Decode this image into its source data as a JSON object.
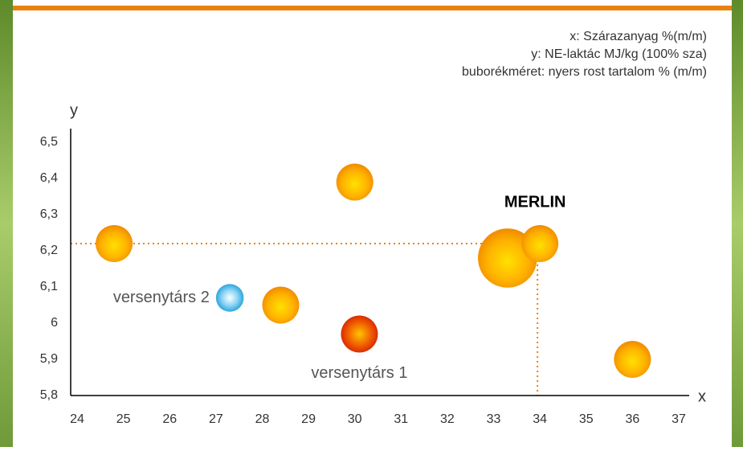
{
  "chart_data": {
    "type": "bubble",
    "notes": [
      "x: Szárazanyag %(m/m)",
      "y: NE-laktác MJ/kg (100% sza)",
      "buborékméret: nyers rost tartalom % (m/m)"
    ],
    "x_label": "x",
    "y_label": "y",
    "x": [
      24.8,
      30.0,
      34.0,
      33.3,
      36.0,
      28.4,
      27.3,
      30.1
    ],
    "values": [
      6.22,
      6.39,
      6.22,
      6.18,
      5.9,
      6.05,
      6.07,
      5.97
    ],
    "sizes": [
      20,
      20,
      20,
      32,
      20,
      20,
      15,
      20
    ],
    "colors": [
      "orange",
      "orange",
      "orange",
      "orange",
      "orange",
      "orange",
      "blue",
      "red"
    ],
    "point_labels": [
      null,
      null,
      "MERLIN",
      null,
      null,
      null,
      "versenytárs 2",
      "versenytárs 1"
    ],
    "xlim": [
      23.7,
      37.4
    ],
    "xticks": [
      24,
      25,
      26,
      27,
      28,
      29,
      30,
      31,
      32,
      33,
      34,
      35,
      36,
      37
    ],
    "ylim": [
      5.8,
      6.5
    ],
    "yticks": [
      {
        "value": 5.8,
        "label": "5,8"
      },
      {
        "value": 5.9,
        "label": "5,9"
      },
      6,
      {
        "value": 6.1,
        "label": "6,1"
      },
      {
        "value": 6.2,
        "label": "6,2"
      },
      {
        "value": 6.3,
        "label": "6,3"
      },
      {
        "value": 6.4,
        "label": "6,4"
      },
      {
        "value": 6.5,
        "label": "6,5"
      }
    ],
    "guide_point": 2
  }
}
